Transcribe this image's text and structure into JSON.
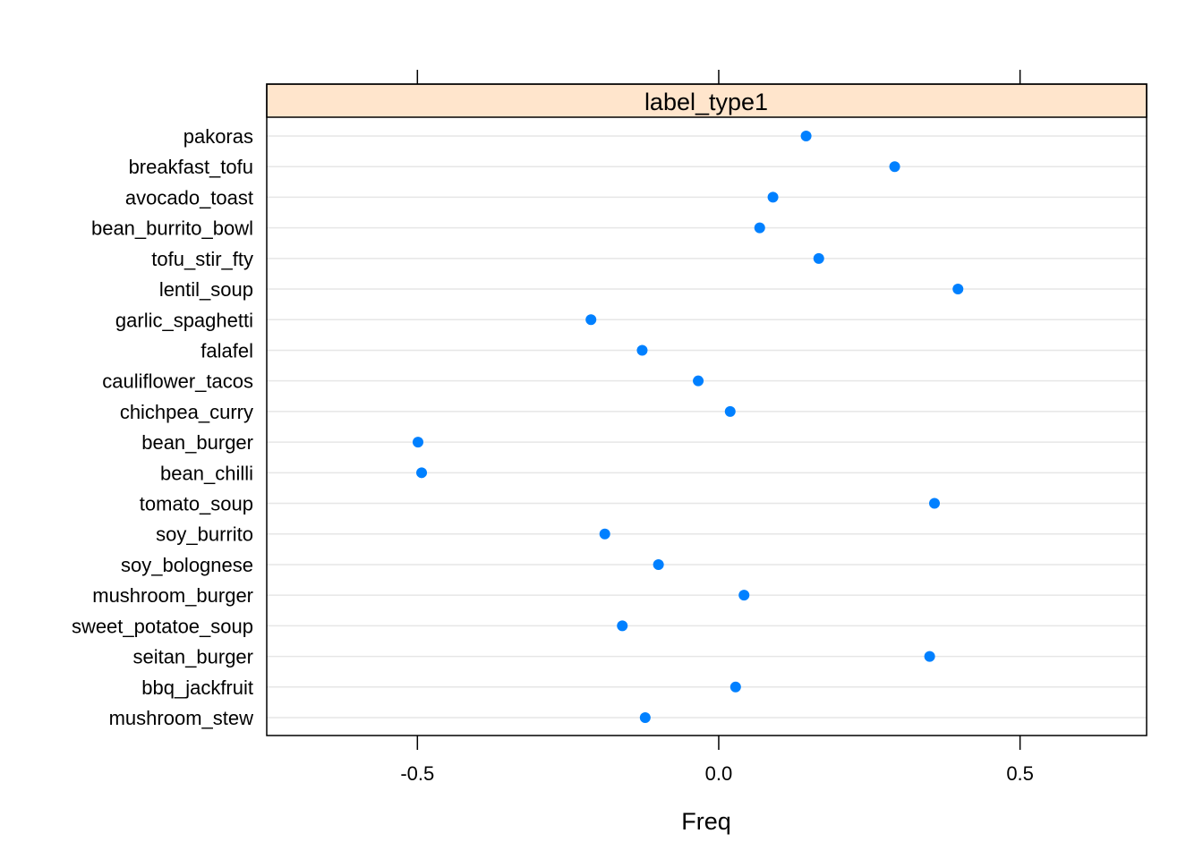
{
  "chart_data": {
    "type": "scatter",
    "subtype": "dotplot",
    "panel_title": "label_type1",
    "xlabel": "Freq",
    "ylabel": "",
    "xlim": [
      -0.75,
      0.71
    ],
    "x_ticks": [
      -0.5,
      0.0,
      0.5
    ],
    "x_tick_labels": [
      "-0.5",
      "0.0",
      "0.5"
    ],
    "grid": true,
    "colors": {
      "point": "#0080ff",
      "strip_background": "#ffe5cc",
      "gridline": "#e6e6e6"
    },
    "categories": [
      "pakoras",
      "breakfast_tofu",
      "avocado_toast",
      "bean_burrito_bowl",
      "tofu_stir_fty",
      "lentil_soup",
      "garlic_spaghetti",
      "falafel",
      "cauliflower_tacos",
      "chichpea_curry",
      "bean_burger",
      "bean_chilli",
      "tomato_soup",
      "soy_burrito",
      "soy_bolognese",
      "mushroom_burger",
      "sweet_potatoe_soup",
      "seitan_burger",
      "bbq_jackfruit",
      "mushroom_stew"
    ],
    "values": [
      0.145,
      0.292,
      0.09,
      0.068,
      0.166,
      0.397,
      -0.212,
      -0.127,
      -0.034,
      0.019,
      -0.499,
      -0.493,
      0.358,
      -0.189,
      -0.1,
      0.042,
      -0.16,
      0.35,
      0.028,
      -0.122
    ]
  }
}
